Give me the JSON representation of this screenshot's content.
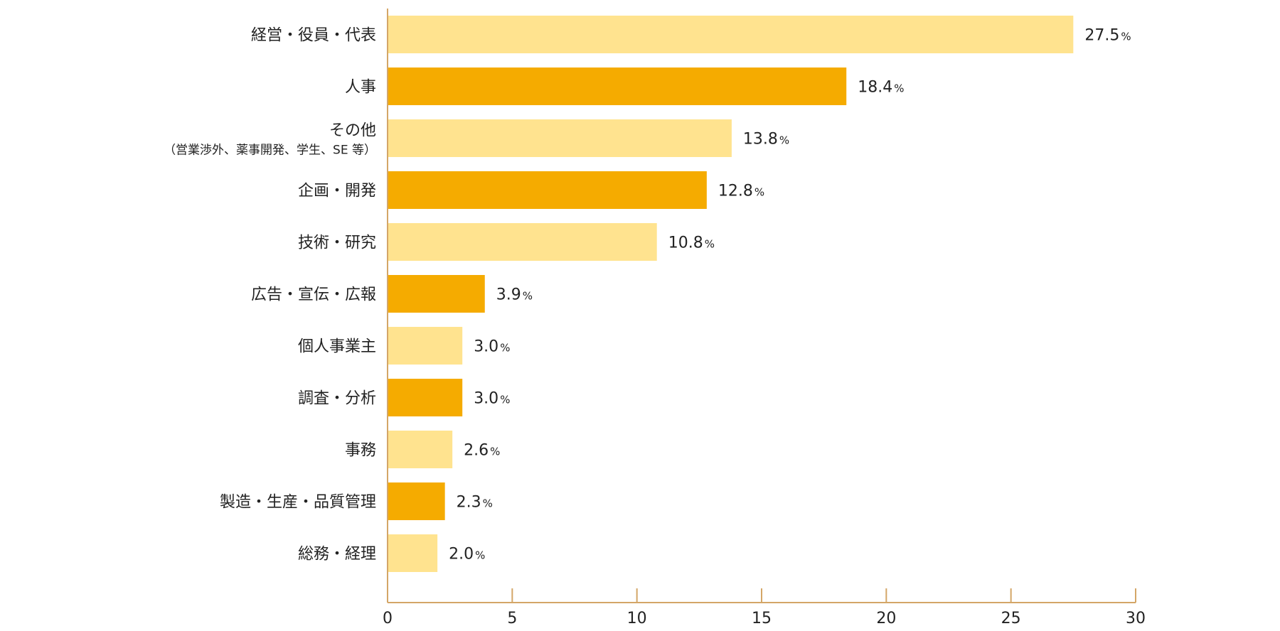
{
  "chart_data": {
    "type": "bar",
    "orientation": "horizontal",
    "title": "",
    "xlabel": "",
    "ylabel": "",
    "unit": "%",
    "xlim": [
      0,
      30
    ],
    "xticks": [
      0,
      5,
      10,
      15,
      20,
      25,
      30
    ],
    "grid": false,
    "colors": {
      "light": "#ffe38f",
      "dark": "#f5ab00",
      "axis": "#d4a667"
    },
    "categories": [
      {
        "label": "経営・役員・代表",
        "sub": "",
        "value": 27.5,
        "value_label": "27.5",
        "shade": "light"
      },
      {
        "label": "人事",
        "sub": "",
        "value": 18.4,
        "value_label": "18.4",
        "shade": "dark"
      },
      {
        "label": "その他",
        "sub": "（営業渉外、薬事開発、学生、SE 等）",
        "value": 13.8,
        "value_label": "13.8",
        "shade": "light"
      },
      {
        "label": "企画・開発",
        "sub": "",
        "value": 12.8,
        "value_label": "12.8",
        "shade": "dark"
      },
      {
        "label": "技術・研究",
        "sub": "",
        "value": 10.8,
        "value_label": "10.8",
        "shade": "light"
      },
      {
        "label": "広告・宣伝・広報",
        "sub": "",
        "value": 3.9,
        "value_label": "3.9",
        "shade": "dark"
      },
      {
        "label": "個人事業主",
        "sub": "",
        "value": 3.0,
        "value_label": "3.0",
        "shade": "light"
      },
      {
        "label": "調査・分析",
        "sub": "",
        "value": 3.0,
        "value_label": "3.0",
        "shade": "dark"
      },
      {
        "label": "事務",
        "sub": "",
        "value": 2.6,
        "value_label": "2.6",
        "shade": "light"
      },
      {
        "label": "製造・生産・品質管理",
        "sub": "",
        "value": 2.3,
        "value_label": "2.3",
        "shade": "dark"
      },
      {
        "label": "総務・経理",
        "sub": "",
        "value": 2.0,
        "value_label": "2.0",
        "shade": "light"
      }
    ]
  }
}
